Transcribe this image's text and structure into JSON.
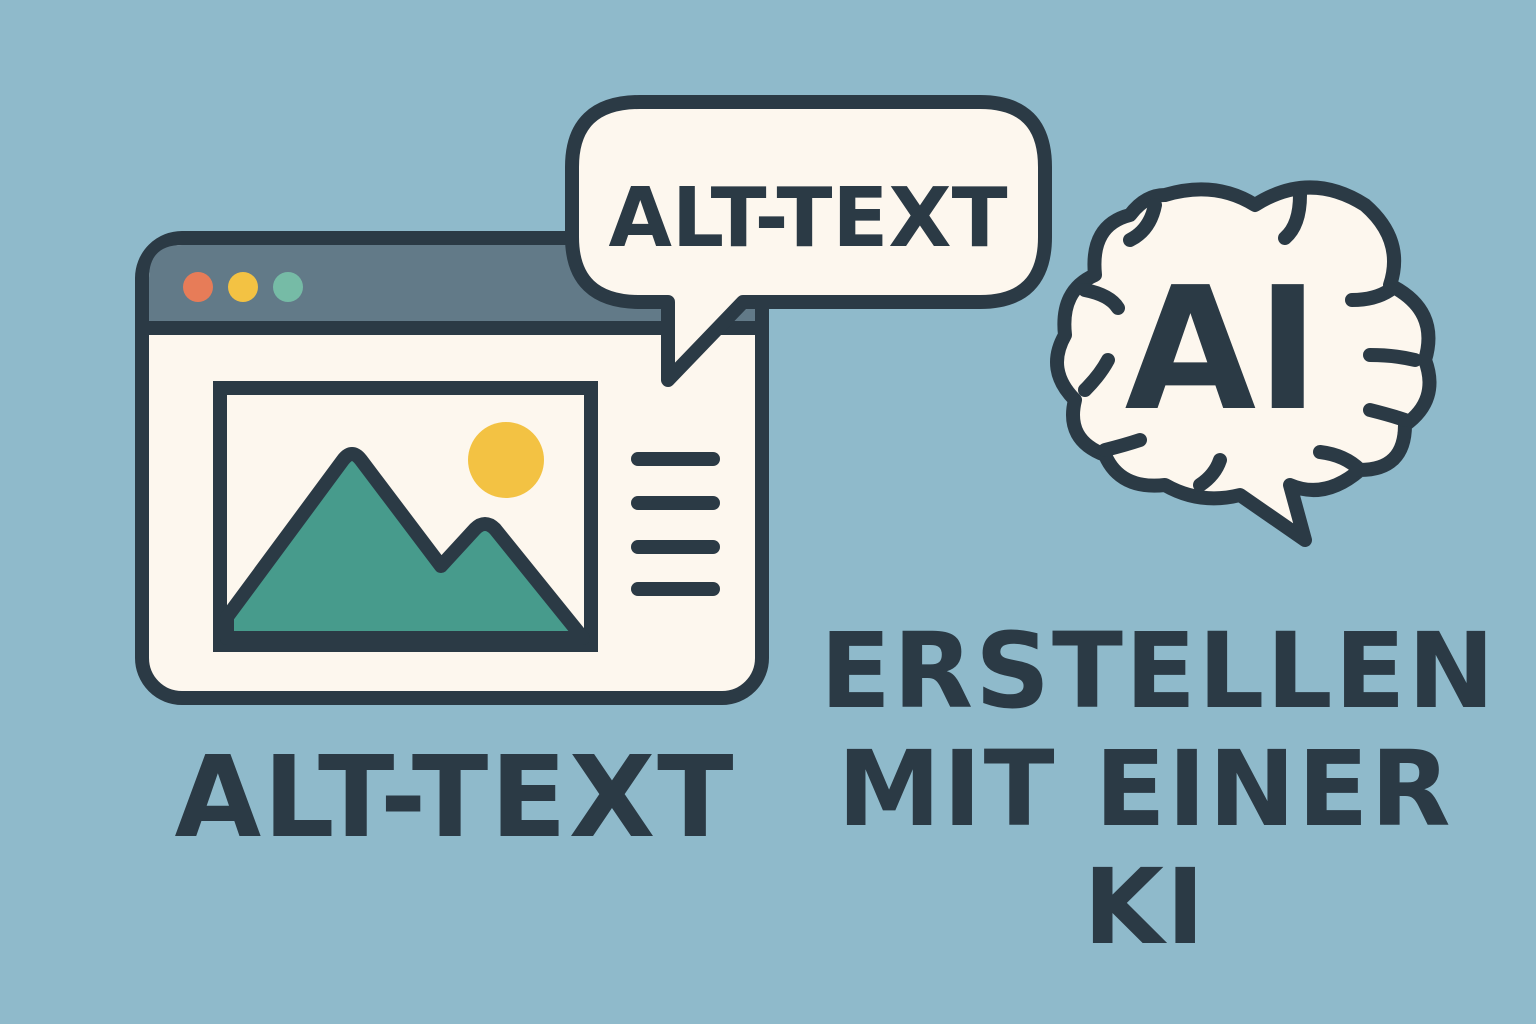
{
  "bubble": {
    "label": "ALT-TEXT"
  },
  "brain": {
    "label": "AI"
  },
  "captions": {
    "left": "ALT-TEXT",
    "right_lines": [
      "ERSTELLEN",
      "MIT EINER",
      "KI"
    ]
  },
  "icons": {
    "window": "browser-window-icon",
    "image": "landscape-image-icon",
    "speech": "speech-bubble-icon",
    "brain": "brain-icon",
    "text_lines": "text-lines-icon"
  },
  "colors": {
    "background": "#8fbacb",
    "outline": "#2b3a45",
    "paper": "#fdf7ee",
    "titlebar": "#627a88",
    "mountain": "#479b8c",
    "sun": "#f3c243",
    "dot_red": "#e77c58",
    "dot_yellow": "#f3c243",
    "dot_green": "#76bba6"
  }
}
